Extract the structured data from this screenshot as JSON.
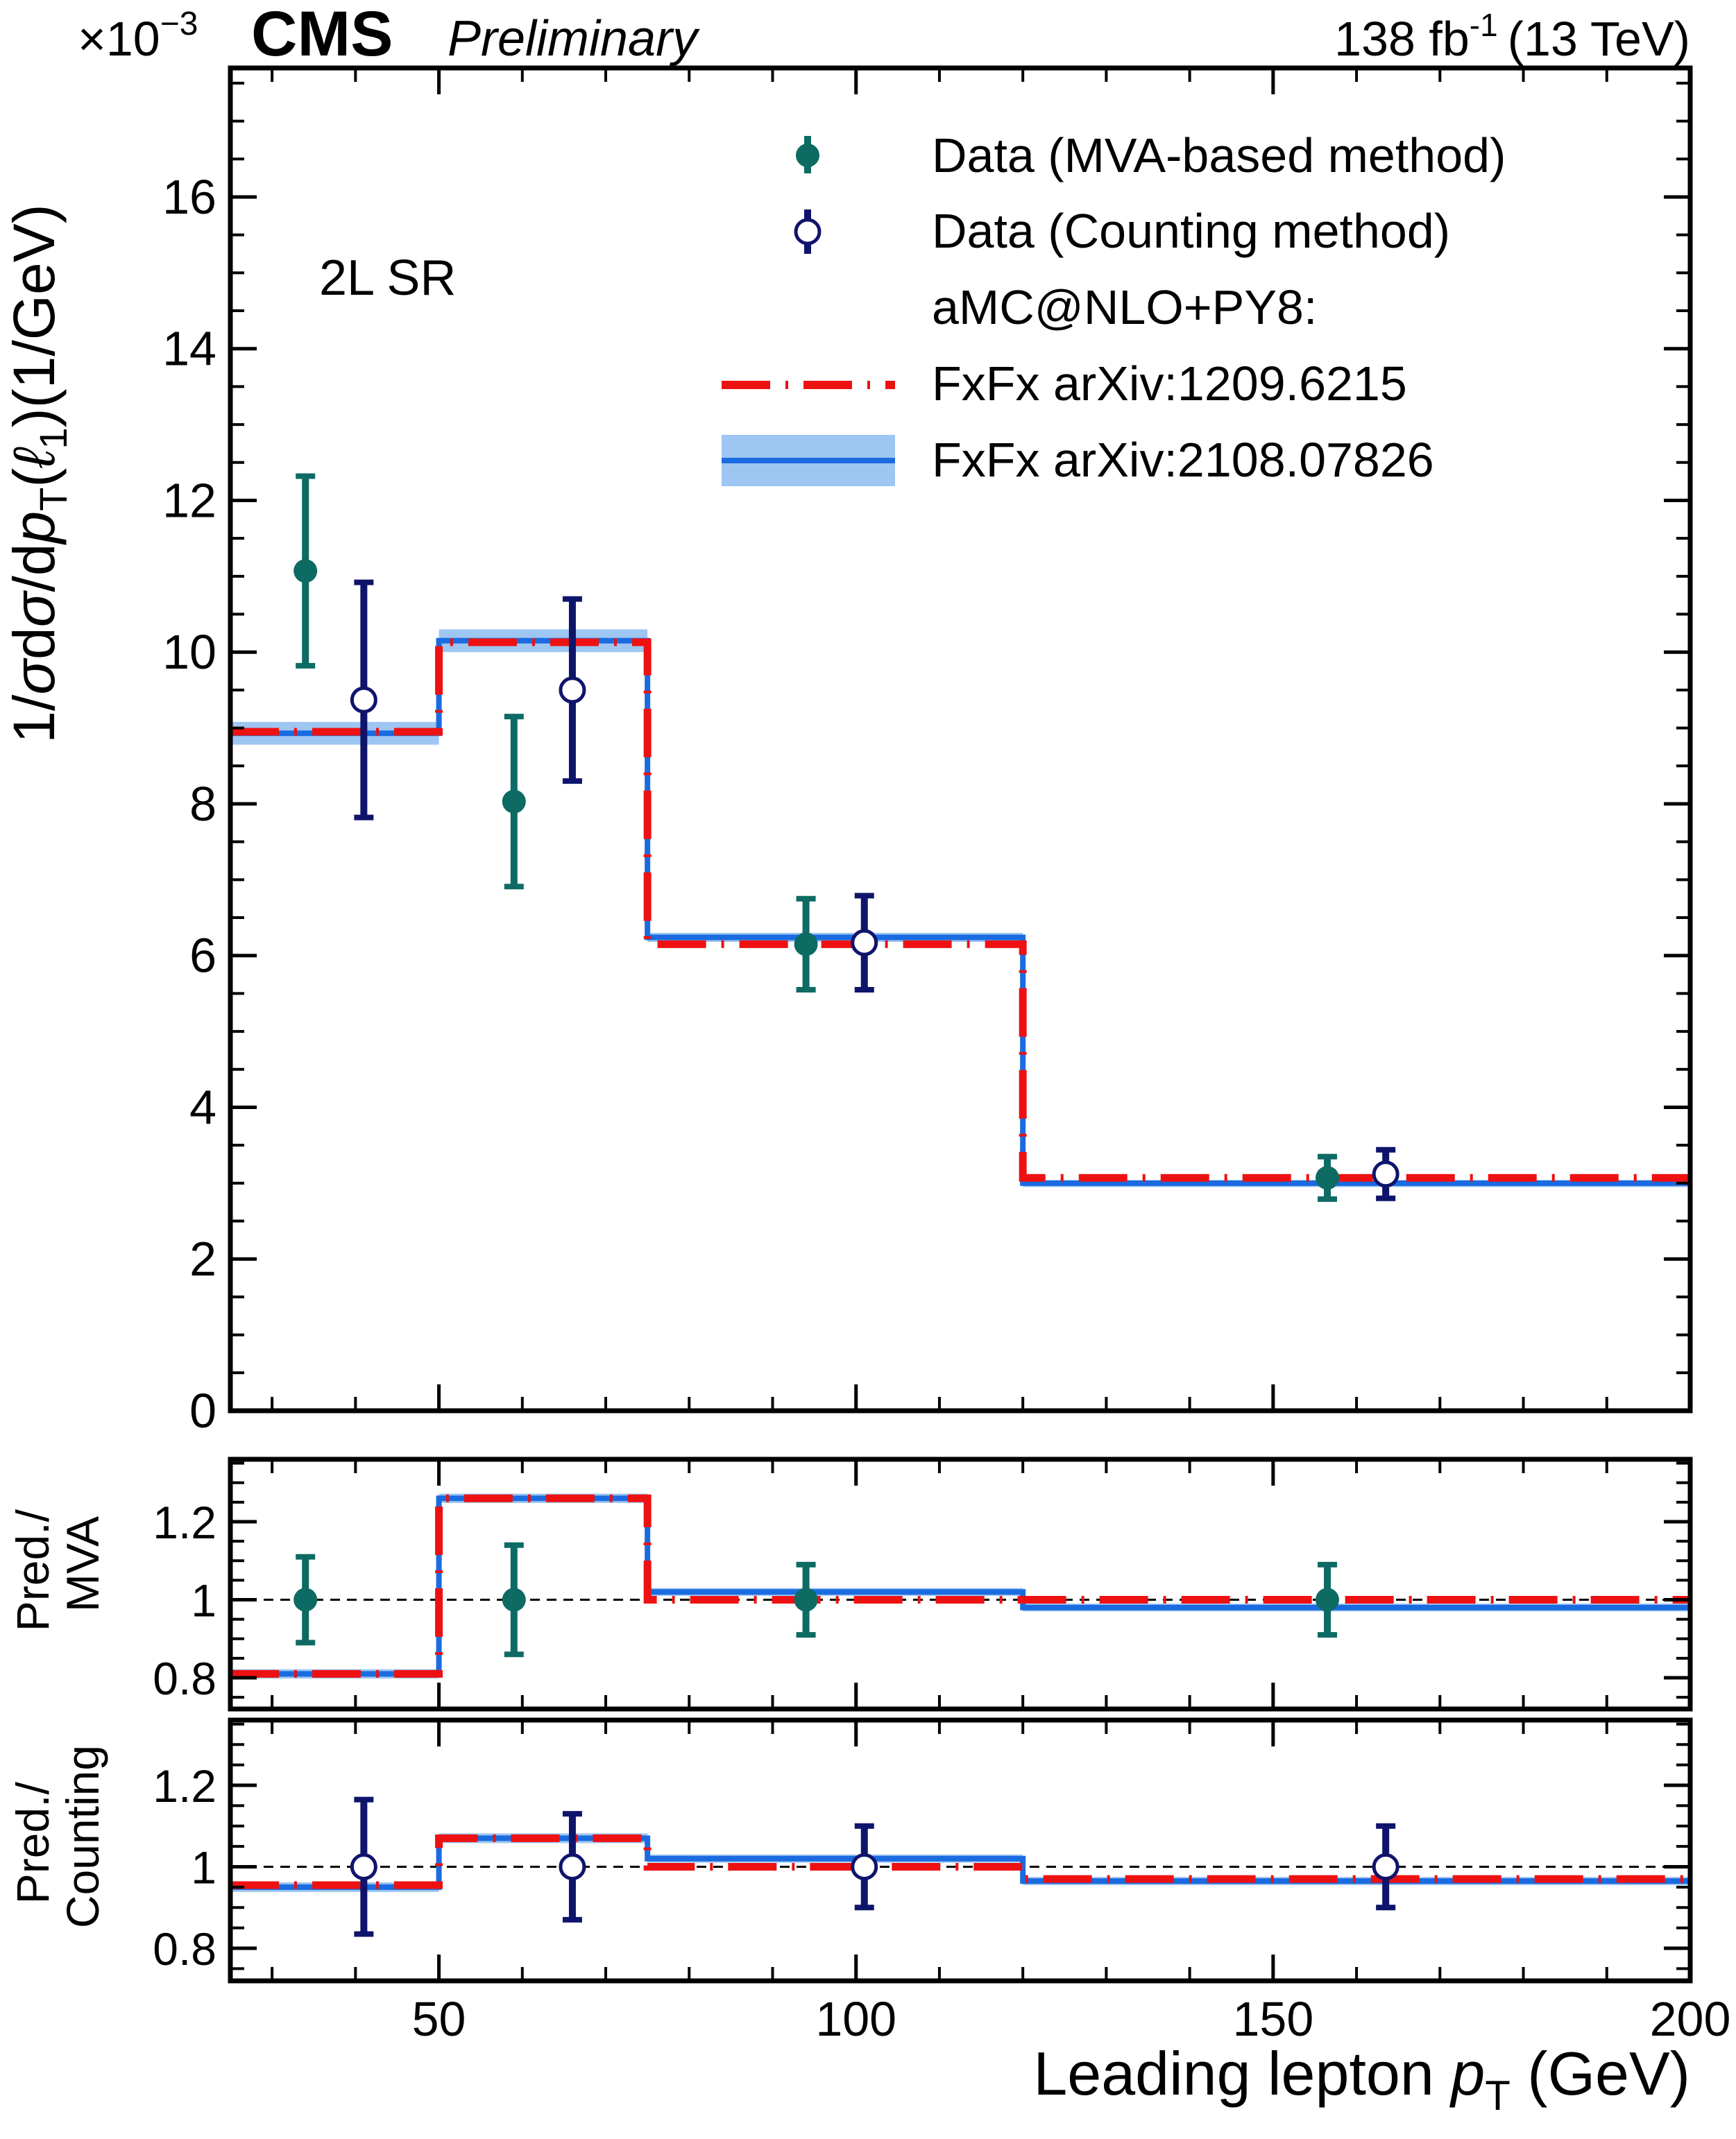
{
  "header": {
    "scale": "×10",
    "scale_exp": "−3",
    "experiment": "CMS",
    "status": "Preliminary",
    "lumi": "138 fb",
    "lumi_exp": "-1",
    "energy": "(13 TeV)"
  },
  "annotation": "2L SR",
  "legend": {
    "data_mva": "Data (MVA-based method)",
    "data_counting": "Data (Counting method)",
    "generator": "aMC@NLO+PY8:",
    "fxfx_old": "FxFx arXiv:1209.6215",
    "fxfx_new": "FxFx arXiv:2108.07826"
  },
  "colors": {
    "data_mva": "#0d6b63",
    "data_counting": "#0f146b",
    "fxfx_old": "#ee1111",
    "fxfx_new": "#1a6be0",
    "fxfx_new_band": "#9ec6f2"
  },
  "chart_data": [
    {
      "type": "line",
      "panel": "main",
      "ylabel_parts": [
        "1/",
        "σ",
        "d",
        "σ",
        "/d",
        "p",
        "T",
        "(",
        "ℓ",
        "1",
        ")(1/GeV)"
      ],
      "ylim": [
        0,
        17.7
      ],
      "y_ticks": [
        0,
        2,
        4,
        6,
        8,
        10,
        12,
        14,
        16
      ],
      "y_tick_labels": [
        "0",
        "2",
        "4",
        "6",
        "8",
        "10",
        "12",
        "14",
        "16"
      ],
      "y_scale_note": "×10^-3",
      "xlim": [
        25,
        200
      ],
      "bin_edges": [
        25,
        50,
        75,
        120,
        200
      ],
      "series": [
        {
          "name": "FxFx arXiv:1209.6215",
          "style": "dashed",
          "values": [
            8.95,
            10.13,
            6.15,
            3.07
          ]
        },
        {
          "name": "FxFx arXiv:2108.07826",
          "style": "solid-band",
          "values": [
            8.93,
            10.15,
            6.24,
            3.0
          ],
          "band": [
            0.15,
            0.15,
            0.06,
            0.04
          ]
        }
      ],
      "points": [
        {
          "name": "Data (MVA-based method)",
          "x": [
            34,
            59,
            94,
            156.5
          ],
          "y": [
            11.07,
            8.03,
            6.15,
            3.07
          ],
          "err": [
            1.25,
            1.12,
            0.6,
            0.28
          ]
        },
        {
          "name": "Data (Counting method)",
          "x": [
            41,
            66,
            101,
            163.5
          ],
          "y": [
            9.37,
            9.5,
            6.17,
            3.12
          ],
          "err": [
            1.55,
            1.2,
            0.62,
            0.32
          ]
        }
      ]
    },
    {
      "type": "line",
      "panel": "ratio-mva",
      "ylabel_parts": [
        "Pred./",
        "MVA"
      ],
      "ylim": [
        0.72,
        1.36
      ],
      "y_ticks": [
        0.8,
        1.0,
        1.2
      ],
      "y_tick_labels": [
        "0.8",
        "1",
        "1.2"
      ],
      "minor_step": 0.05,
      "xlim": [
        25,
        200
      ],
      "bin_edges": [
        25,
        50,
        75,
        120,
        200
      ],
      "series": [
        {
          "name": "FxFx arXiv:1209.6215",
          "style": "dashed",
          "values": [
            0.81,
            1.26,
            1.0,
            1.0
          ]
        },
        {
          "name": "FxFx arXiv:2108.07826",
          "style": "solid-band",
          "values": [
            0.81,
            1.26,
            1.02,
            0.98
          ],
          "band": [
            0.012,
            0.012,
            0.01,
            0.01
          ]
        }
      ],
      "points": [
        {
          "name": "Data (MVA-based method)",
          "x": [
            34,
            59,
            94,
            156.5
          ],
          "y": [
            1.0,
            1.0,
            1.0,
            1.0
          ],
          "err": [
            0.11,
            0.14,
            0.09,
            0.09
          ]
        }
      ]
    },
    {
      "type": "line",
      "panel": "ratio-counting",
      "ylabel_parts": [
        "Pred./",
        "Counting"
      ],
      "ylim": [
        0.72,
        1.36
      ],
      "y_ticks": [
        0.8,
        1.0,
        1.2
      ],
      "y_tick_labels": [
        "0.8",
        "1",
        "1.2"
      ],
      "minor_step": 0.05,
      "xlim": [
        25,
        200
      ],
      "bin_edges": [
        25,
        50,
        75,
        120,
        200
      ],
      "x_ticks": [
        50,
        100,
        150,
        200
      ],
      "x_tick_labels": [
        "50",
        "100",
        "150",
        "200"
      ],
      "xlabel_parts": [
        "Leading lepton ",
        "p",
        "T",
        " (GeV)"
      ],
      "series": [
        {
          "name": "FxFx arXiv:1209.6215",
          "style": "dashed",
          "values": [
            0.955,
            1.07,
            1.0,
            0.97
          ]
        },
        {
          "name": "FxFx arXiv:2108.07826",
          "style": "solid-band",
          "values": [
            0.95,
            1.07,
            1.02,
            0.965
          ],
          "band": [
            0.012,
            0.012,
            0.01,
            0.01
          ]
        }
      ],
      "points": [
        {
          "name": "Data (Counting method)",
          "x": [
            41,
            66,
            101,
            163.5
          ],
          "y": [
            1.0,
            1.0,
            1.0,
            1.0
          ],
          "err": [
            0.165,
            0.13,
            0.1,
            0.1
          ]
        }
      ]
    }
  ]
}
